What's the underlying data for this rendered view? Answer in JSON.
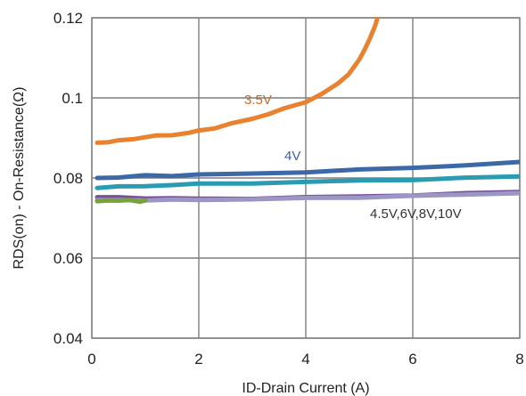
{
  "chart_data": {
    "type": "line",
    "xlabel": "ID-Drain Current (A)",
    "ylabel": "RDS(on) - On-Resistance(Ω)",
    "xlim": [
      0,
      8
    ],
    "ylim": [
      0.04,
      0.12
    ],
    "x_ticks": [
      "0",
      "2",
      "4",
      "6",
      "8"
    ],
    "y_ticks": [
      "0.04",
      "0.06",
      "0.08",
      "0.1",
      "0.12"
    ],
    "grid": true,
    "series_labels": [
      {
        "text": "3.5V",
        "color": "#c06a2a",
        "x": 2.85,
        "y": 0.0985
      },
      {
        "text": "4V",
        "color": "#3b5ea8",
        "x": 3.6,
        "y": 0.0845
      },
      {
        "text": "4.5V,6V,8V,10V",
        "color": "#333333",
        "x": 5.2,
        "y": 0.07
      }
    ],
    "series": [
      {
        "color": "#e8822f",
        "x": [
          0.1,
          0.3,
          0.5,
          0.8,
          1.0,
          1.2,
          1.5,
          1.8,
          2.0,
          2.3,
          2.6,
          3.0,
          3.3,
          3.6,
          4.0,
          4.3,
          4.6,
          4.8,
          5.0,
          5.1,
          5.2,
          5.3,
          5.35
        ],
        "y": [
          0.0888,
          0.089,
          0.0893,
          0.0898,
          0.0902,
          0.0905,
          0.0908,
          0.0912,
          0.0918,
          0.0925,
          0.0935,
          0.0948,
          0.096,
          0.0973,
          0.099,
          0.101,
          0.1035,
          0.106,
          0.1095,
          0.112,
          0.115,
          0.118,
          0.1205
        ]
      },
      {
        "color": "#3d68a8",
        "x": [
          0.1,
          0.5,
          1.0,
          1.5,
          2.0,
          3.0,
          4.0,
          5.0,
          6.0,
          7.0,
          8.0
        ],
        "y": [
          0.08,
          0.0801,
          0.0806,
          0.0806,
          0.0808,
          0.0811,
          0.0815,
          0.082,
          0.0826,
          0.0832,
          0.084
        ]
      },
      {
        "color": "#2a9bb0",
        "x": [
          0.1,
          0.5,
          1.0,
          1.5,
          2.0,
          3.0,
          4.0,
          5.0,
          6.0,
          7.0,
          8.0
        ],
        "y": [
          0.0775,
          0.0778,
          0.078,
          0.0783,
          0.0785,
          0.0787,
          0.079,
          0.0793,
          0.0796,
          0.08,
          0.0804
        ]
      },
      {
        "color": "#7a4f9a",
        "x": [
          0.1,
          0.5,
          1.0,
          1.5,
          2.0,
          3.0,
          4.0,
          5.0,
          6.0,
          7.0,
          8.0
        ],
        "y": [
          0.0752,
          0.0751,
          0.075,
          0.0749,
          0.0748,
          0.0749,
          0.0751,
          0.0754,
          0.0757,
          0.0761,
          0.0765
        ]
      },
      {
        "color": "#9c96c4",
        "x": [
          0.1,
          0.5,
          1.0,
          1.5,
          2.0,
          3.0,
          4.0,
          5.0,
          6.0,
          7.0,
          8.0
        ],
        "y": [
          0.0745,
          0.0745,
          0.0745,
          0.0745,
          0.0746,
          0.0747,
          0.0749,
          0.0752,
          0.0755,
          0.0758,
          0.0762
        ]
      },
      {
        "color": "#79a33a",
        "x": [
          0.1,
          0.3,
          0.5,
          0.7,
          0.9,
          1.0
        ],
        "y": [
          0.0742,
          0.0745,
          0.0743,
          0.0744,
          0.0742,
          0.0744
        ]
      }
    ]
  }
}
